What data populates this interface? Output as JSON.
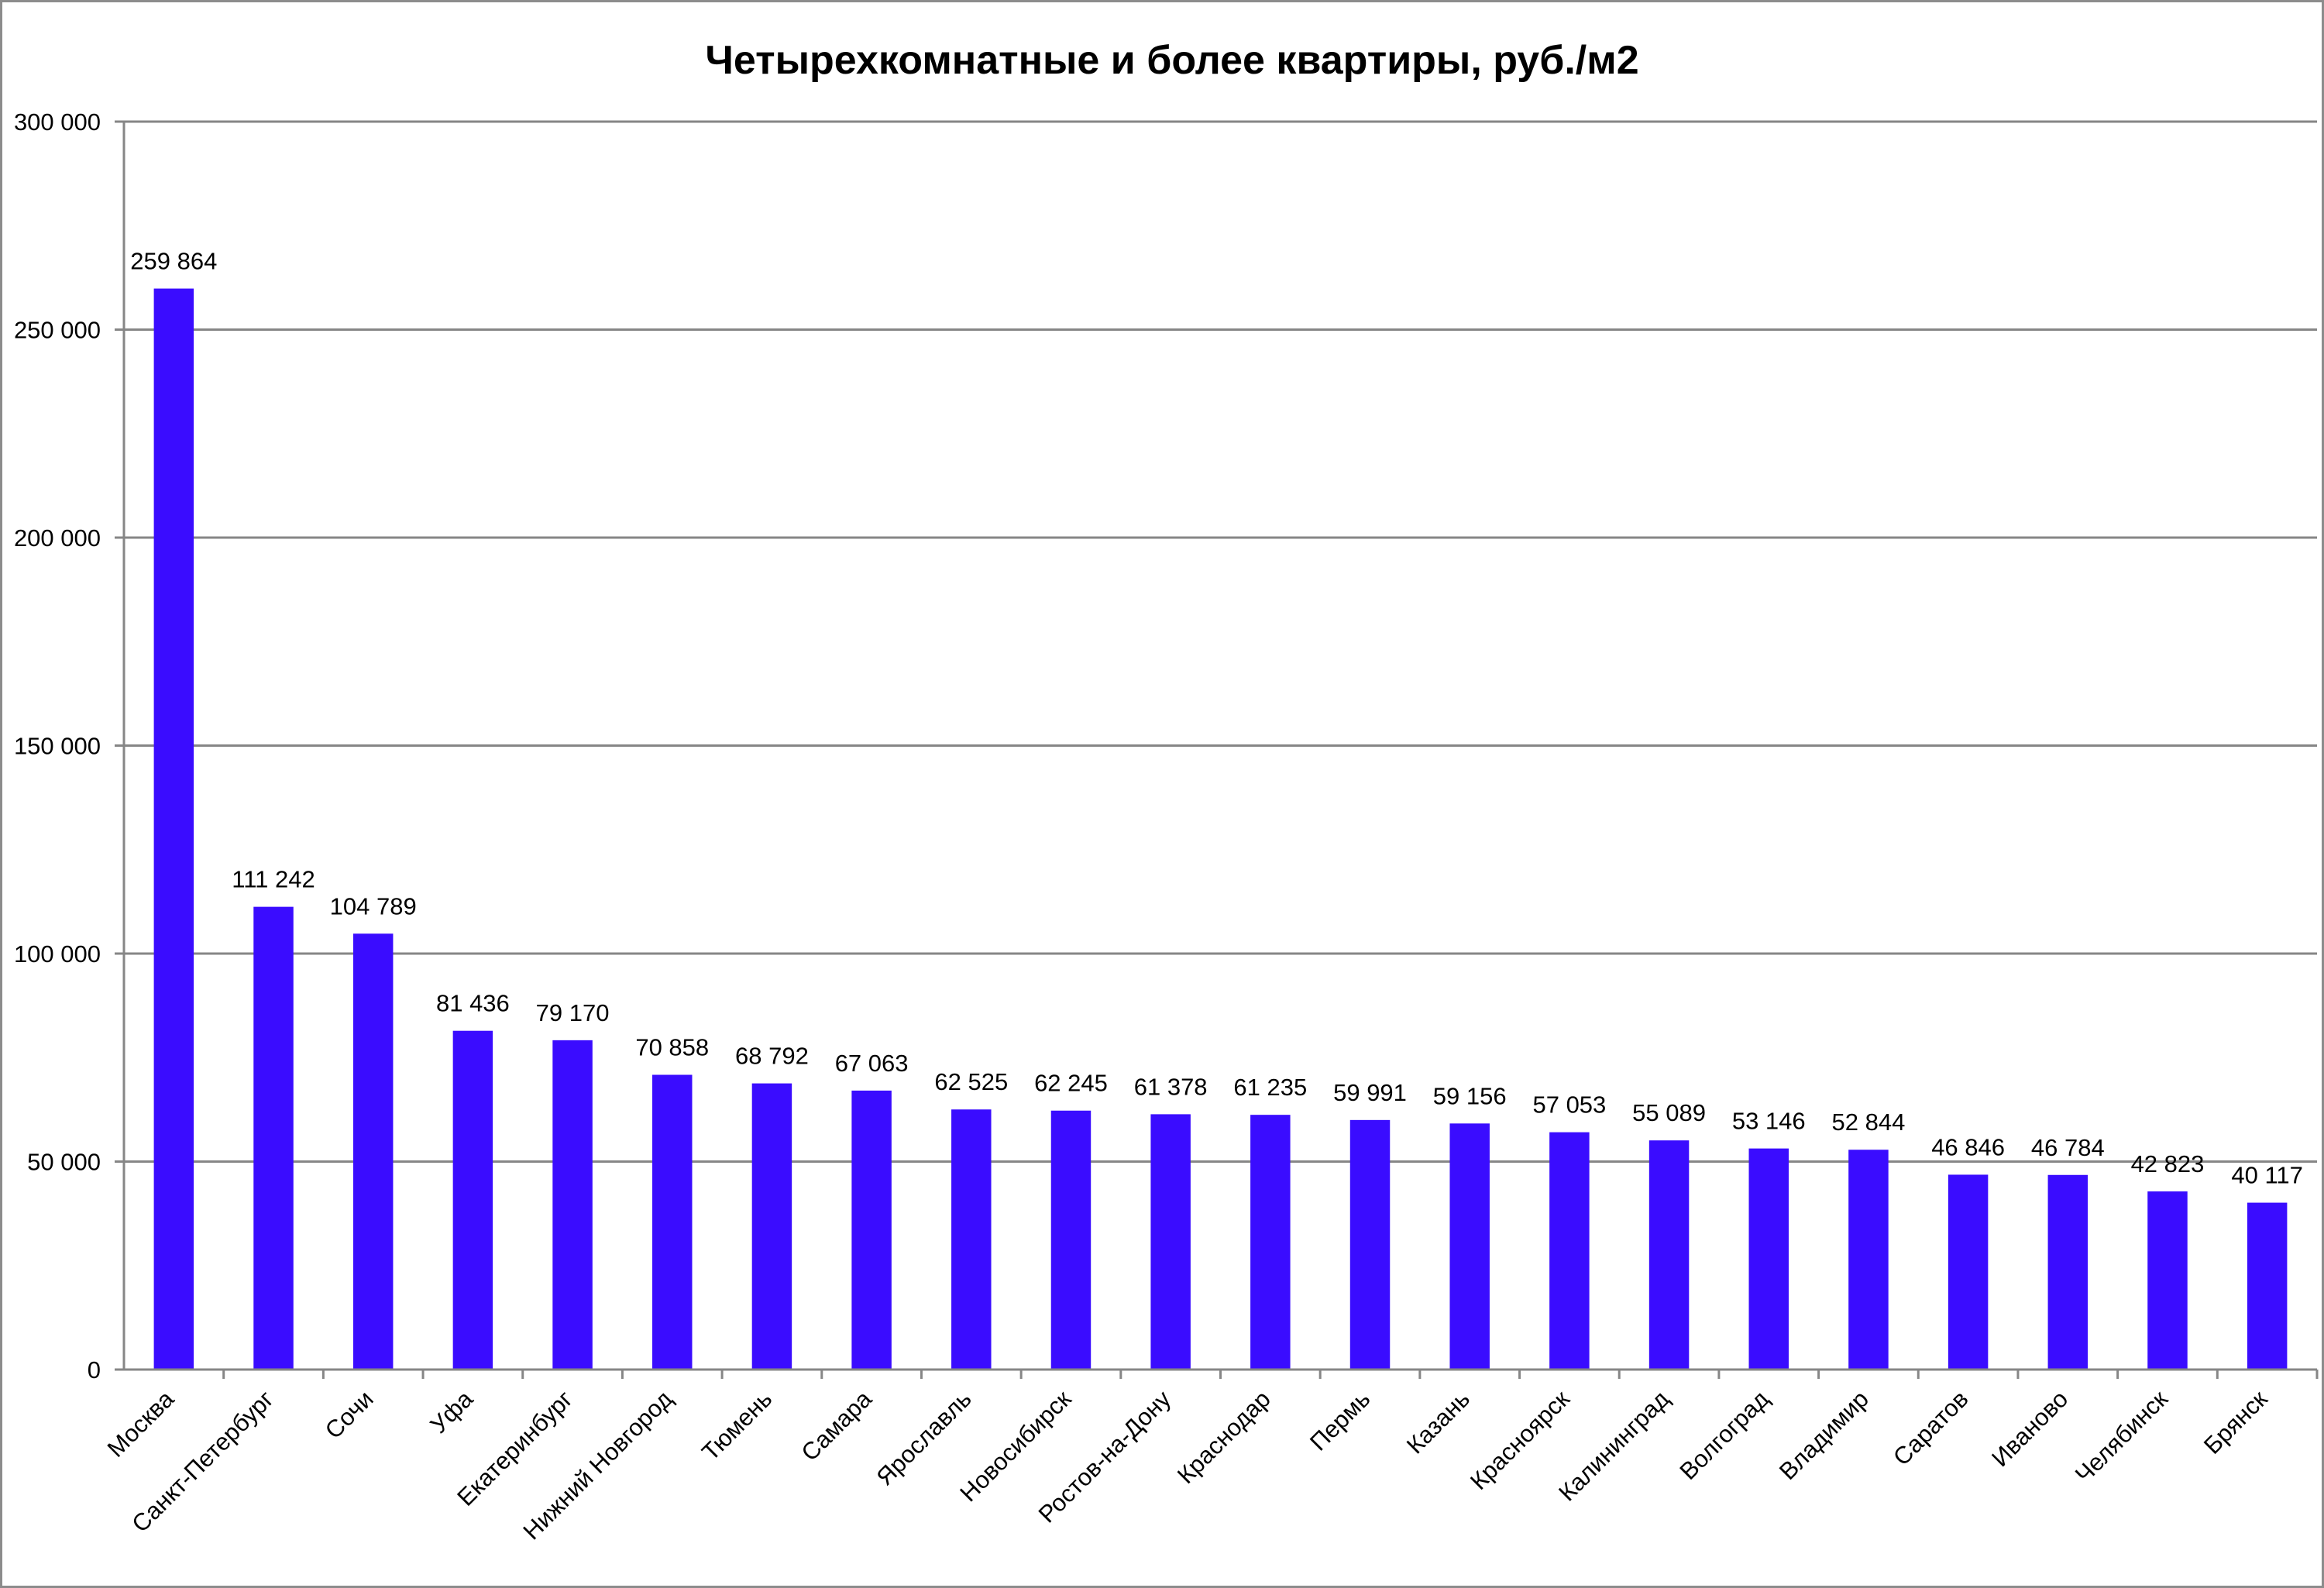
{
  "chart_data": {
    "type": "bar",
    "title": "Четырехкомнатные и более квартиры, руб./м2",
    "xlabel": "",
    "ylabel": "",
    "ylim": [
      0,
      300000
    ],
    "y_ticks": [
      0,
      50000,
      100000,
      150000,
      200000,
      250000,
      300000
    ],
    "y_tick_labels": [
      "0",
      "50 000",
      "100 000",
      "150 000",
      "200 000",
      "250 000",
      "300 000"
    ],
    "grid": true,
    "legend": "none",
    "bar_color": "#3a0cff",
    "categories": [
      "Москва",
      "Санкт-Петербург",
      "Сочи",
      "Уфа",
      "Екатеринбург",
      "Нижний Новгород",
      "Тюмень",
      "Самара",
      "Ярославль",
      "Новосибирск",
      "Ростов-на-Дону",
      "Краснодар",
      "Пермь",
      "Казань",
      "Красноярск",
      "Калининград",
      "Волгоград",
      "Владимир",
      "Саратов",
      "Иваново",
      "Челябинск",
      "Брянск"
    ],
    "values": [
      259864,
      111242,
      104789,
      81436,
      79170,
      70858,
      68792,
      67063,
      62525,
      62245,
      61378,
      61235,
      59991,
      59156,
      57053,
      55089,
      53146,
      52844,
      46846,
      46784,
      42823,
      40117
    ],
    "value_labels": [
      "259 864",
      "111 242",
      "104 789",
      "81 436",
      "79 170",
      "70 858",
      "68 792",
      "67 063",
      "62 525",
      "62 245",
      "61 378",
      "61 235",
      "59 991",
      "59 156",
      "57 053",
      "55 089",
      "53 146",
      "52 844",
      "46 846",
      "46 784",
      "42 823",
      "40 117"
    ]
  }
}
